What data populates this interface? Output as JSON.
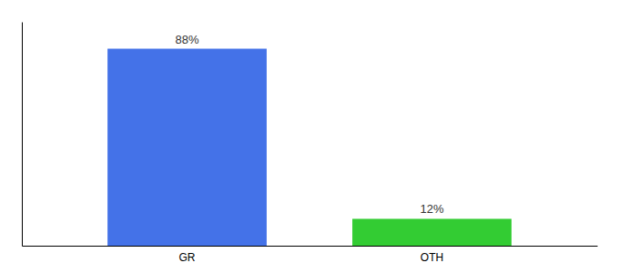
{
  "chart_data": {
    "type": "bar",
    "categories": [
      "GR",
      "OTH"
    ],
    "values": [
      88,
      12
    ],
    "value_labels": [
      "88%",
      "12%"
    ],
    "colors": [
      "#4472e8",
      "#33cc33"
    ],
    "ylim": [
      0,
      100
    ],
    "yticks": [],
    "data_labels": true,
    "tick_labels": "x",
    "grid": false
  }
}
